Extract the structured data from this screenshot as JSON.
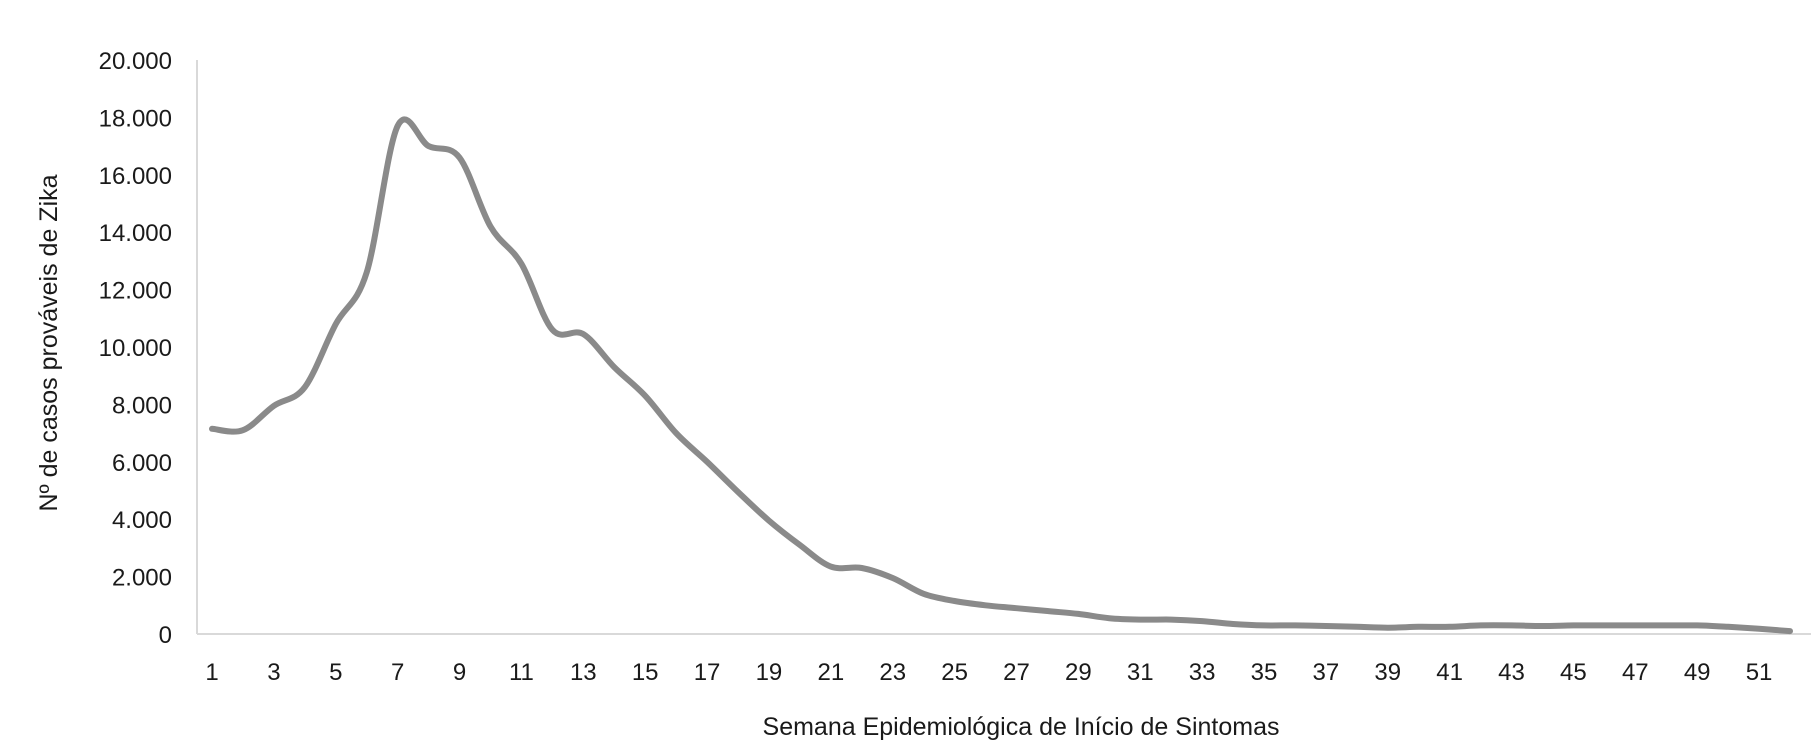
{
  "chart_data": {
    "type": "line",
    "title": "",
    "xlabel": "Semana Epidemiológica de Início de Sintomas",
    "ylabel": "Nº de casos prováveis de Zika",
    "ylim": [
      0,
      20000
    ],
    "xlim": [
      1,
      52
    ],
    "grid": false,
    "y_ticks": [
      0,
      2000,
      4000,
      6000,
      8000,
      10000,
      12000,
      14000,
      16000,
      18000,
      20000
    ],
    "y_tick_labels": [
      "0",
      "2.000",
      "4.000",
      "6.000",
      "8.000",
      "10.000",
      "12.000",
      "14.000",
      "16.000",
      "18.000",
      "20.000"
    ],
    "x_tick_labels": [
      "1",
      "3",
      "5",
      "7",
      "9",
      "11",
      "13",
      "15",
      "17",
      "19",
      "21",
      "23",
      "25",
      "27",
      "29",
      "31",
      "33",
      "35",
      "37",
      "39",
      "41",
      "43",
      "45",
      "47",
      "49",
      "51"
    ],
    "line_color": "#8a8a8a",
    "series": [
      {
        "x": [
          1,
          2,
          3,
          4,
          5,
          6,
          7,
          8,
          9,
          10,
          11,
          12,
          13,
          14,
          15,
          16,
          17,
          18,
          19,
          20,
          21,
          22,
          23,
          24,
          25,
          26,
          27,
          28,
          29,
          30,
          31,
          32,
          33,
          34,
          35,
          36,
          37,
          38,
          39,
          40,
          41,
          42,
          43,
          44,
          45,
          46,
          47,
          48,
          49,
          50,
          51,
          52
        ],
        "values": [
          7150,
          7100,
          7950,
          8600,
          10800,
          12600,
          17700,
          17000,
          16600,
          14200,
          12900,
          10600,
          10450,
          9300,
          8300,
          7000,
          6000,
          4950,
          3950,
          3100,
          2350,
          2300,
          1950,
          1400,
          1150,
          1000,
          900,
          800,
          700,
          550,
          500,
          500,
          450,
          350,
          300,
          300,
          280,
          250,
          220,
          250,
          250,
          300,
          300,
          280,
          300,
          300,
          300,
          300,
          300,
          250,
          180,
          100
        ]
      }
    ]
  }
}
